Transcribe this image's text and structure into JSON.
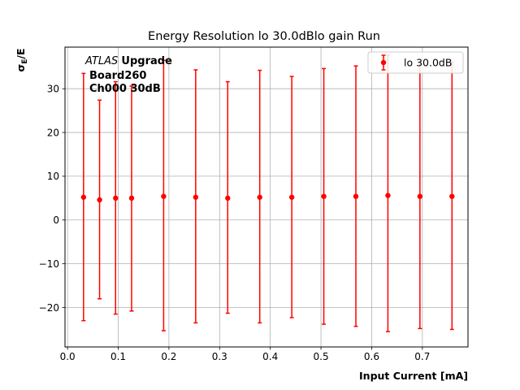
{
  "chart_data": {
    "type": "scatter",
    "title": "Energy Resolution lo 30.0dBlo gain Run",
    "xlabel": "Input Current [mA]",
    "ylabel_main": "σ",
    "ylabel_sub": "E",
    "ylabel_tail": "/E",
    "xlim": [
      -0.005,
      0.79
    ],
    "ylim": [
      -29,
      39.5
    ],
    "xticks": [
      0.0,
      0.1,
      0.2,
      0.3,
      0.4,
      0.5,
      0.6,
      0.7
    ],
    "xtick_labels": [
      "0.0",
      "0.1",
      "0.2",
      "0.3",
      "0.4",
      "0.5",
      "0.6",
      "0.7"
    ],
    "yticks": [
      -20,
      -10,
      0,
      10,
      20,
      30
    ],
    "ytick_labels": [
      "−20",
      "−10",
      "0",
      "10",
      "20",
      "30"
    ],
    "grid": true,
    "legend_position": "top-right",
    "annotation": {
      "italic": "ATLAS",
      "bold": "Upgrade",
      "line2": "Board260",
      "line3": "Ch000 30dB"
    },
    "series": [
      {
        "name": "lo 30.0dB",
        "color": "#ff0000",
        "x": [
          0.0316,
          0.0632,
          0.0948,
          0.1264,
          0.1896,
          0.2528,
          0.316,
          0.3792,
          0.4424,
          0.5056,
          0.5688,
          0.632,
          0.6952,
          0.7584
        ],
        "y": [
          5.2,
          4.6,
          5.0,
          5.0,
          5.4,
          5.2,
          5.0,
          5.2,
          5.2,
          5.4,
          5.4,
          5.6,
          5.4,
          5.4
        ],
        "yerr_low": [
          -23.0,
          -18.0,
          -21.5,
          -20.8,
          -25.3,
          -23.5,
          -21.3,
          -23.5,
          -22.3,
          -23.8,
          -24.3,
          -25.5,
          -24.8,
          -25.0
        ],
        "yerr_high": [
          33.5,
          27.4,
          31.6,
          30.6,
          36.5,
          34.3,
          31.6,
          34.2,
          32.8,
          34.6,
          35.2,
          37.7,
          35.7,
          36.0
        ]
      }
    ]
  }
}
